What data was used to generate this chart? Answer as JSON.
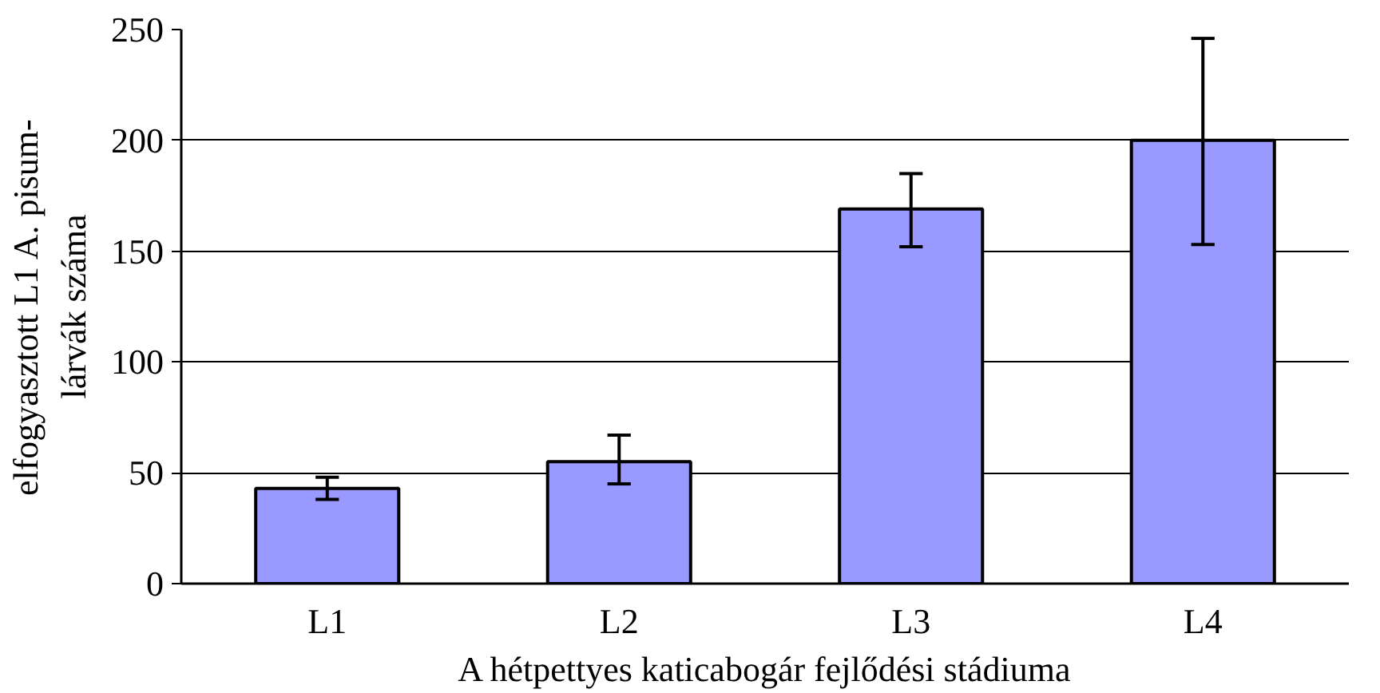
{
  "chart_data": {
    "type": "bar",
    "xlabel": "A hétpettyes katicabogár fejlődési stádiuma",
    "ylabel": "elfogyasztott L1 A. pisum-\nlárvák száma",
    "categories": [
      "L1",
      "L2",
      "L3",
      "L4"
    ],
    "values": [
      43,
      55,
      169,
      200
    ],
    "errors": [
      [
        38,
        48
      ],
      [
        45,
        67
      ],
      [
        152,
        185
      ],
      [
        153,
        246
      ]
    ],
    "color": "#9999ff",
    "ylim": [
      0,
      250
    ],
    "yticks": [
      0,
      50,
      100,
      150,
      200,
      250
    ],
    "grid": "y"
  }
}
